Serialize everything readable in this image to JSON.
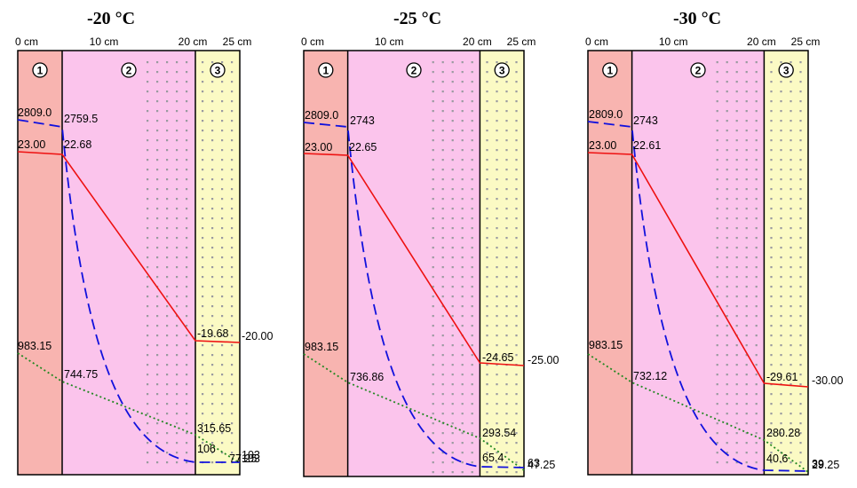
{
  "axis_ticks": [
    "0 cm",
    "10 cm",
    "20 cm",
    "25 cm"
  ],
  "layer_numbers": [
    "1",
    "2",
    "3"
  ],
  "colors": {
    "layer1": "#f8b4b0",
    "layer2": "#fbc4ec",
    "layer3": "#fbfac4",
    "temperature": "#ee1111",
    "vapor_pressure": "#1111dd",
    "saturation_pressure": "#228822",
    "dots": "#9a9aa0"
  },
  "chart_data": [
    {
      "type": "line",
      "title": "-20 °C",
      "x_range": [
        0,
        25
      ],
      "temperature": {
        "x": [
          0,
          5,
          20,
          25
        ],
        "labels": [
          "23.00",
          "22.68",
          "-19.68",
          "-20.00"
        ]
      },
      "vapor_pressure": {
        "x": [
          0,
          5,
          20,
          25
        ],
        "labels": [
          "2809.0",
          "2759.5",
          "106",
          "103"
        ]
      },
      "saturation_pressure": {
        "x": [
          0,
          5,
          20,
          25
        ],
        "labels": [
          "983.15",
          "744.75",
          "315.65",
          "77.25"
        ]
      }
    },
    {
      "type": "line",
      "title": "-25 °C",
      "x_range": [
        0,
        25
      ],
      "temperature": {
        "x": [
          0,
          5,
          20,
          25
        ],
        "labels": [
          "23.00",
          "22.65",
          "-24.65",
          "-25.00"
        ]
      },
      "vapor_pressure": {
        "x": [
          0,
          5,
          20,
          25
        ],
        "labels": [
          "2809.0",
          "2743",
          "65.4",
          "63"
        ]
      },
      "saturation_pressure": {
        "x": [
          0,
          5,
          20,
          25
        ],
        "labels": [
          "983.15",
          "736.86",
          "293.54",
          "47.25"
        ]
      }
    },
    {
      "type": "line",
      "title": "-30 °C",
      "x_range": [
        0,
        25
      ],
      "temperature": {
        "x": [
          0,
          5,
          20,
          25
        ],
        "labels": [
          "23.00",
          "22.61",
          "-29.61",
          "-30.00"
        ]
      },
      "vapor_pressure": {
        "x": [
          0,
          5,
          20,
          25
        ],
        "labels": [
          "2809.0",
          "2743",
          "40.6",
          "39"
        ]
      },
      "saturation_pressure": {
        "x": [
          0,
          5,
          20,
          25
        ],
        "labels": [
          "983.15",
          "732.12",
          "280.28",
          "29.25"
        ]
      }
    }
  ]
}
